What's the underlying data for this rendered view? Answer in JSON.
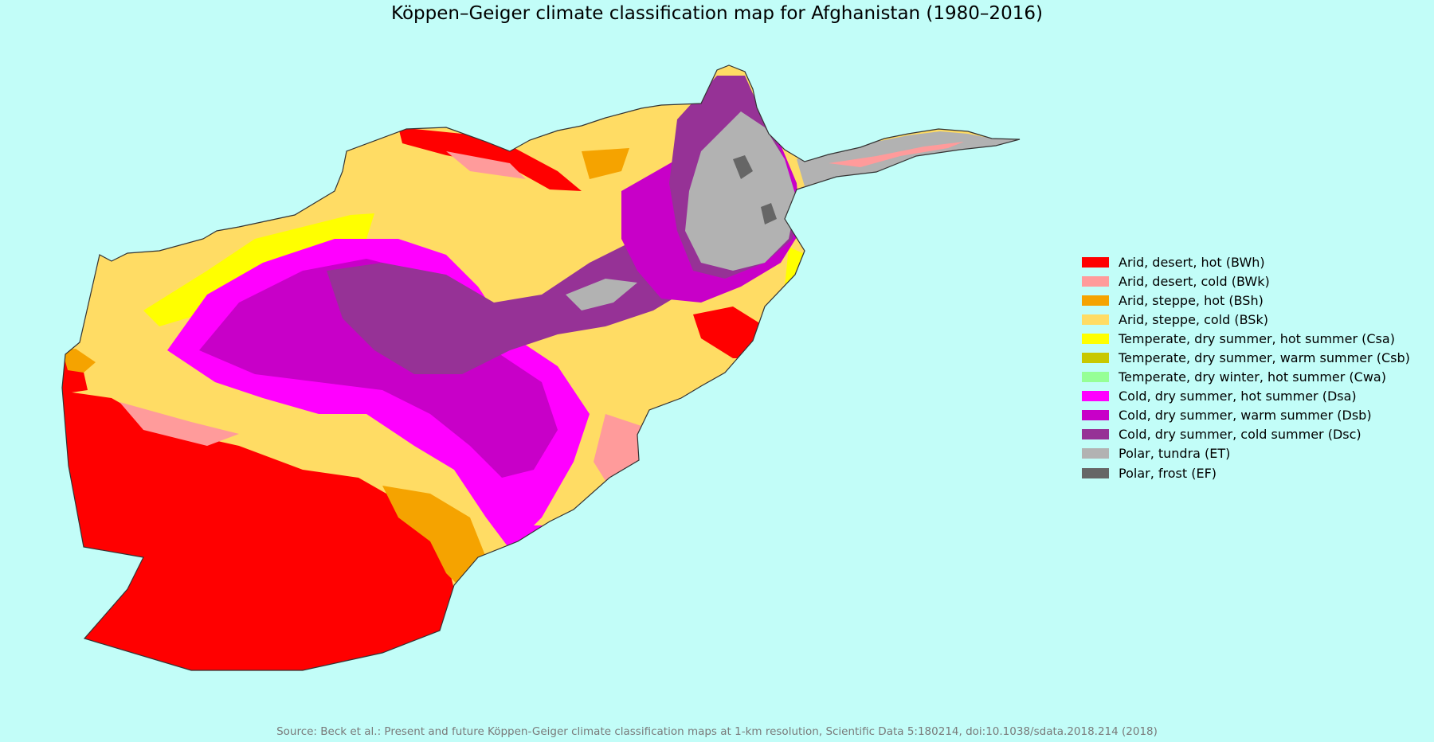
{
  "title": "Köppen–Geiger climate classification map for Afghanistan (1980–2016)",
  "source": "Source: Beck et al.: Present and future Köppen-Geiger climate classification maps at 1-km resolution, Scientific Data 5:180214, doi:10.1038/sdata.2018.214 (2018)",
  "colors": {
    "background": "#c2fdf8",
    "border": "#333333"
  },
  "legend": [
    {
      "label": "Arid, desert, hot (BWh)",
      "color": "#ff0000"
    },
    {
      "label": "Arid, desert, cold (BWk)",
      "color": "#ff9b9b"
    },
    {
      "label": "Arid, steppe, hot (BSh)",
      "color": "#f5a300"
    },
    {
      "label": "Arid, steppe, cold (BSk)",
      "color": "#ffdc64"
    },
    {
      "label": "Temperate, dry summer, hot summer (Csa)",
      "color": "#ffff00"
    },
    {
      "label": "Temperate, dry summer, warm summer (Csb)",
      "color": "#c8c800"
    },
    {
      "label": "Temperate, dry winter, hot summer (Cwa)",
      "color": "#96ff96"
    },
    {
      "label": "Cold, dry summer, hot summer (Dsa)",
      "color": "#ff00ff"
    },
    {
      "label": "Cold, dry summer, warm summer (Dsb)",
      "color": "#c800c8"
    },
    {
      "label": "Cold, dry summer, cold summer (Dsc)",
      "color": "#963296"
    },
    {
      "label": "Polar, tundra (ET)",
      "color": "#b2b2b2"
    },
    {
      "label": "Polar, frost (EF)",
      "color": "#666666"
    }
  ]
}
